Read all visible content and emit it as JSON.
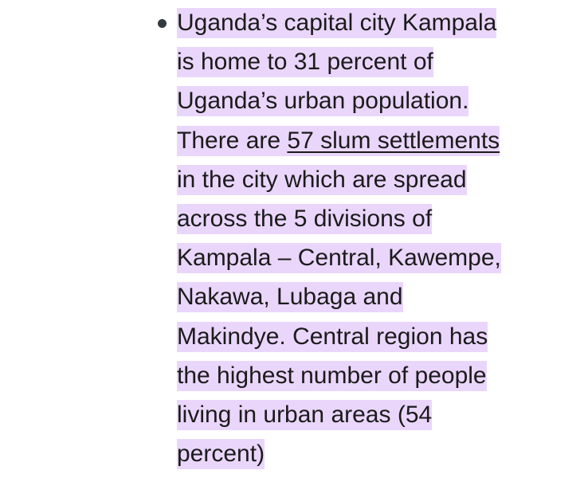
{
  "bullet": {
    "lines": [
      "Uganda’s capital city Kampala",
      "is home to 31 percent of",
      "Uganda’s urban population.",
      {
        "text": "There are ",
        "link": "57 slum settlements"
      },
      "in the city which are spread",
      "across the 5 divisions of",
      "Kampala – Central, Kawempe,",
      "Nakawa, Lubaga and",
      "Makindye. Central region has",
      "the highest number of people",
      "living in urban areas (54",
      "percent)"
    ]
  }
}
